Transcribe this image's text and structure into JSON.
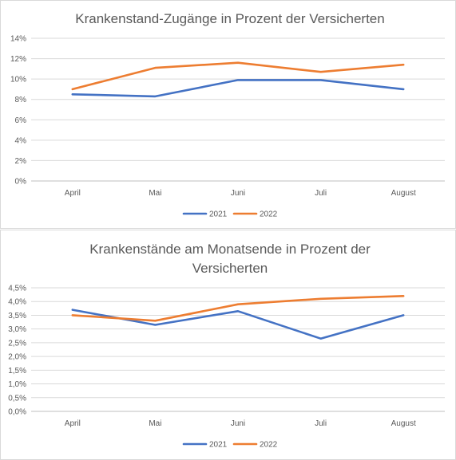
{
  "chart_data": [
    {
      "type": "line",
      "title": "Krankenstand-Zugänge in Prozent der Versicherten",
      "categories": [
        "April",
        "Mai",
        "Juni",
        "Juli",
        "August"
      ],
      "y_ticks": [
        "0%",
        "2%",
        "4%",
        "6%",
        "8%",
        "10%",
        "12%",
        "14%"
      ],
      "ylim": [
        0,
        14
      ],
      "grid": true,
      "legend_position": "bottom",
      "series": [
        {
          "name": "2021",
          "color": "#4472C4",
          "values": [
            8.5,
            8.3,
            9.9,
            9.9,
            9.0
          ]
        },
        {
          "name": "2022",
          "color": "#ED7D31",
          "values": [
            9.0,
            11.1,
            11.6,
            10.7,
            11.4
          ]
        }
      ]
    },
    {
      "type": "line",
      "title_lines": [
        "Krankenstände am Monatsende in Prozent der",
        "Versicherten"
      ],
      "categories": [
        "April",
        "Mai",
        "Juni",
        "Juli",
        "August"
      ],
      "y_ticks": [
        "0,0%",
        "0,5%",
        "1,0%",
        "1,5%",
        "2,0%",
        "2,5%",
        "3,0%",
        "3,5%",
        "4,0%",
        "4,5%"
      ],
      "ylim": [
        0,
        4.5
      ],
      "grid": true,
      "legend_position": "bottom",
      "series": [
        {
          "name": "2021",
          "color": "#4472C4",
          "values": [
            3.7,
            3.15,
            3.65,
            2.65,
            3.5
          ]
        },
        {
          "name": "2022",
          "color": "#ED7D31",
          "values": [
            3.5,
            3.3,
            3.9,
            4.1,
            4.2
          ]
        }
      ]
    }
  ]
}
